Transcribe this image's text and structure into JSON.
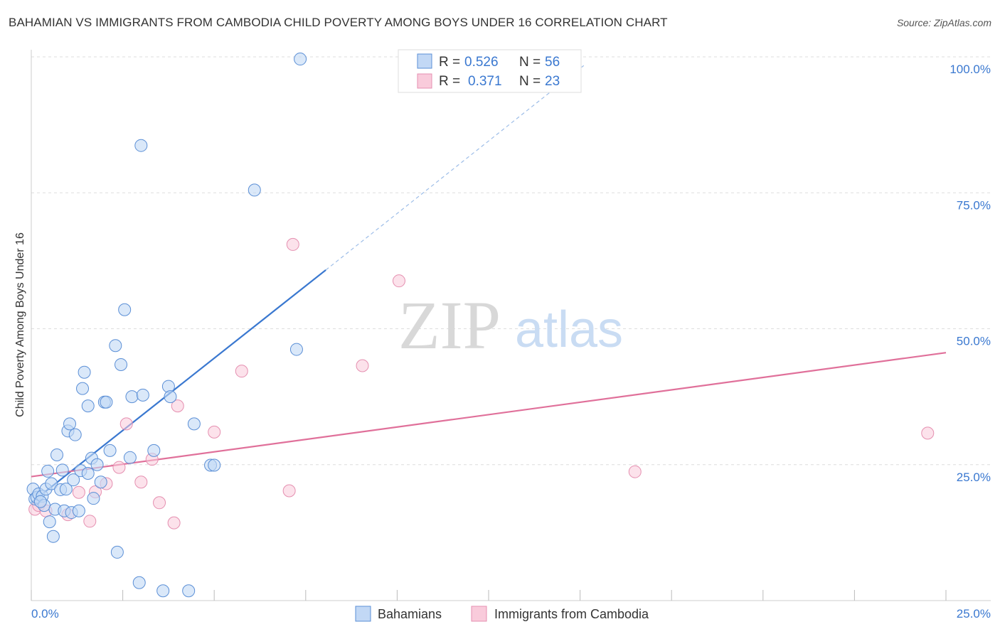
{
  "header": {
    "title": "BAHAMIAN VS IMMIGRANTS FROM CAMBODIA CHILD POVERTY AMONG BOYS UNDER 16 CORRELATION CHART",
    "source": "Source: ZipAtlas.com"
  },
  "watermark": {
    "zip": "ZIP",
    "atlas": "atlas"
  },
  "colors": {
    "blue": "#3a78d0",
    "blue_fill": "#c2d8f5",
    "pink": "#e0709a",
    "pink_fill": "#f9cbdb",
    "axis_label": "#3a78d0",
    "grid": "#dddddd"
  },
  "chart_data": {
    "type": "scatter",
    "title": "BAHAMIAN VS IMMIGRANTS FROM CAMBODIA CHILD POVERTY AMONG BOYS UNDER 16 CORRELATION CHART",
    "xlabel": "",
    "ylabel": "Child Poverty Among Boys Under 16",
    "xlim": [
      0,
      25
    ],
    "ylim": [
      0,
      100
    ],
    "x_tick_labels": [
      "0.0%",
      "25.0%"
    ],
    "y_tick_values": [
      25,
      50,
      75,
      100
    ],
    "y_tick_labels": [
      "25.0%",
      "50.0%",
      "75.0%",
      "100.0%"
    ],
    "legend_stats": [
      {
        "r_label": "R =",
        "r_value": "0.526",
        "n_label": "N =",
        "n_value": "56"
      },
      {
        "r_label": "R =",
        "r_value": "0.371",
        "n_label": "N =",
        "n_value": "23"
      }
    ],
    "legend_items": [
      "Bahamians",
      "Immigrants from Cambodia"
    ],
    "series": [
      {
        "name": "Bahamians",
        "points": [
          [
            0.05,
            20.5
          ],
          [
            0.1,
            18.7
          ],
          [
            0.15,
            19.0
          ],
          [
            0.2,
            19.6
          ],
          [
            0.3,
            19.2
          ],
          [
            0.35,
            17.5
          ],
          [
            0.4,
            20.5
          ],
          [
            0.45,
            23.8
          ],
          [
            0.5,
            14.5
          ],
          [
            0.55,
            21.5
          ],
          [
            0.6,
            11.8
          ],
          [
            0.65,
            16.8
          ],
          [
            0.7,
            26.8
          ],
          [
            0.8,
            20.4
          ],
          [
            0.85,
            24.0
          ],
          [
            0.9,
            16.5
          ],
          [
            0.95,
            20.5
          ],
          [
            1.0,
            31.2
          ],
          [
            1.05,
            32.5
          ],
          [
            1.1,
            16.2
          ],
          [
            1.15,
            22.2
          ],
          [
            1.2,
            30.5
          ],
          [
            1.3,
            16.5
          ],
          [
            1.35,
            23.9
          ],
          [
            1.4,
            39.0
          ],
          [
            1.45,
            42.0
          ],
          [
            1.55,
            35.8
          ],
          [
            1.55,
            23.4
          ],
          [
            1.65,
            26.2
          ],
          [
            1.7,
            18.8
          ],
          [
            1.8,
            25.0
          ],
          [
            1.9,
            21.8
          ],
          [
            2.0,
            36.5
          ],
          [
            2.05,
            36.5
          ],
          [
            2.15,
            27.6
          ],
          [
            2.3,
            46.9
          ],
          [
            2.35,
            8.9
          ],
          [
            2.45,
            43.4
          ],
          [
            2.55,
            53.5
          ],
          [
            2.7,
            26.3
          ],
          [
            2.75,
            37.5
          ],
          [
            2.95,
            3.3
          ],
          [
            3.0,
            83.7
          ],
          [
            3.05,
            37.8
          ],
          [
            3.35,
            27.6
          ],
          [
            3.6,
            1.8
          ],
          [
            3.75,
            39.4
          ],
          [
            3.8,
            37.5
          ],
          [
            4.3,
            1.8
          ],
          [
            4.45,
            32.5
          ],
          [
            4.9,
            24.9
          ],
          [
            5.0,
            24.9
          ],
          [
            6.1,
            75.5
          ],
          [
            7.25,
            46.2
          ],
          [
            7.35,
            99.6
          ],
          [
            0.25,
            18.2
          ]
        ],
        "trend": {
          "x": [
            0.0,
            8.05
          ],
          "y": [
            18.0,
            60.8
          ]
        },
        "trend_dashed": {
          "x": [
            8.05,
            15.1
          ],
          "y": [
            60.8,
            98.4
          ]
        }
      },
      {
        "name": "Immigrants from Cambodia",
        "points": [
          [
            0.1,
            16.8
          ],
          [
            0.2,
            17.5
          ],
          [
            0.4,
            16.5
          ],
          [
            1.0,
            15.8
          ],
          [
            1.3,
            19.9
          ],
          [
            1.6,
            14.6
          ],
          [
            1.75,
            20.0
          ],
          [
            2.05,
            21.5
          ],
          [
            2.4,
            24.5
          ],
          [
            2.6,
            32.5
          ],
          [
            3.0,
            21.8
          ],
          [
            3.3,
            26.0
          ],
          [
            3.5,
            18.0
          ],
          [
            3.9,
            14.3
          ],
          [
            4.0,
            35.8
          ],
          [
            5.0,
            31.0
          ],
          [
            5.75,
            42.2
          ],
          [
            7.05,
            20.2
          ],
          [
            7.15,
            65.5
          ],
          [
            9.05,
            43.2
          ],
          [
            10.05,
            58.8
          ],
          [
            16.5,
            23.7
          ],
          [
            24.5,
            30.8
          ]
        ],
        "trend": {
          "x": [
            0.0,
            25.0
          ],
          "y": [
            22.8,
            45.6
          ]
        }
      }
    ]
  }
}
